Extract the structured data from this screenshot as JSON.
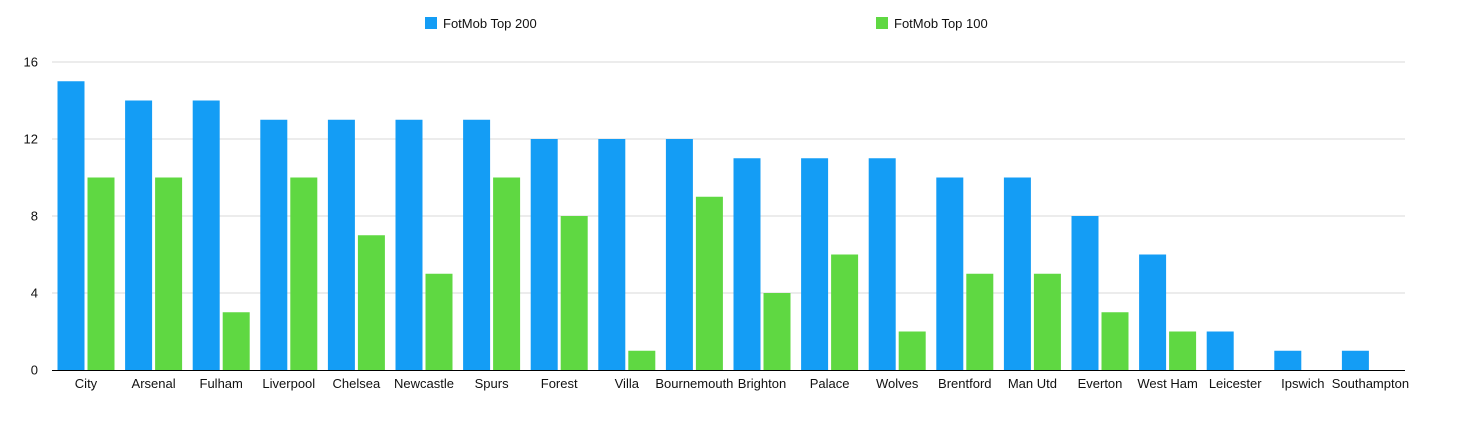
{
  "chart_data": {
    "type": "bar",
    "title": "",
    "xlabel": "",
    "ylabel": "",
    "ylim": [
      0,
      16
    ],
    "yticks": [
      0,
      4,
      8,
      12,
      16
    ],
    "grid": true,
    "legend_position": "top",
    "categories": [
      "City",
      "Arsenal",
      "Fulham",
      "Liverpool",
      "Chelsea",
      "Newcastle",
      "Spurs",
      "Forest",
      "Villa",
      "Bournemouth",
      "Brighton",
      "Palace",
      "Wolves",
      "Brentford",
      "Man Utd",
      "Everton",
      "West Ham",
      "Leicester",
      "Ipswich",
      "Southampton"
    ],
    "series": [
      {
        "name": "FotMob Top 200",
        "color": "#149df5",
        "values": [
          15,
          14,
          14,
          13,
          13,
          13,
          13,
          12,
          12,
          12,
          11,
          11,
          11,
          10,
          10,
          8,
          6,
          2,
          1,
          1
        ]
      },
      {
        "name": "FotMob Top 100",
        "color": "#5fd842",
        "values": [
          10,
          10,
          3,
          10,
          7,
          5,
          10,
          8,
          1,
          9,
          4,
          6,
          2,
          5,
          5,
          3,
          2,
          0,
          0,
          0
        ]
      }
    ]
  }
}
